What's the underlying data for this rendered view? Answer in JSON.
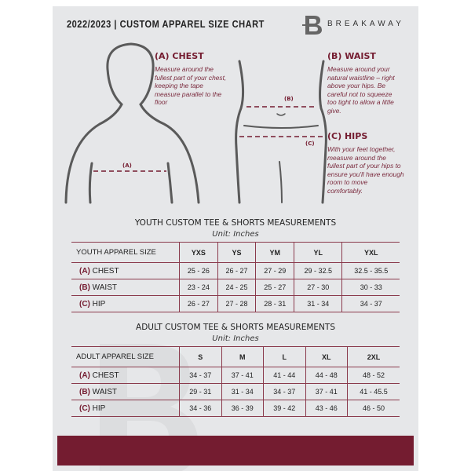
{
  "header": {
    "title": "2022/2023  |  CUSTOM APPAREL SIZE CHART",
    "brand": "BREAKAWAY",
    "logo_letter": "B"
  },
  "guides": {
    "chest": {
      "title": "(A) CHEST",
      "text": "Measure around the fullest part of your chest, keeping the tape measure parallel to the floor",
      "marker": "(A)"
    },
    "waist": {
      "title": "(B) WAIST",
      "text": "Measure around your natural waistline – right above your hips. Be careful not to squeeze too tight to allow a little give.",
      "marker": "(B)"
    },
    "hips": {
      "title": "(C) HIPS",
      "text": "With your feet together, measure around the fullest part of your hips to ensure you'll have enough room to move comfortably.",
      "marker": "(C)"
    }
  },
  "youth": {
    "title": "YOUTH CUSTOM TEE & SHORTS MEASUREMENTS",
    "unit": "Unit: Inches",
    "header": [
      "YOUTH APPAREL SIZE",
      "YXS",
      "YS",
      "YM",
      "YL",
      "YXL"
    ],
    "rows": [
      {
        "code": "(A)",
        "label": "CHEST",
        "values": [
          "25 - 26",
          "26 - 27",
          "27 - 29",
          "29 - 32.5",
          "32.5 - 35.5"
        ]
      },
      {
        "code": "(B)",
        "label": "WAIST",
        "values": [
          "23 - 24",
          "24 - 25",
          "25 - 27",
          "27 - 30",
          "30 - 33"
        ]
      },
      {
        "code": "(C)",
        "label": "HIP",
        "values": [
          "26 - 27",
          "27 - 28",
          "28 - 31",
          "31 - 34",
          "34 - 37"
        ]
      }
    ]
  },
  "adult": {
    "title": "ADULT CUSTOM TEE & SHORTS MEASUREMENTS",
    "unit": "Unit: Inches",
    "header": [
      "ADULT APPAREL SIZE",
      "S",
      "M",
      "L",
      "XL",
      "2XL"
    ],
    "rows": [
      {
        "code": "(A)",
        "label": "CHEST",
        "values": [
          "34 - 37",
          "37 - 41",
          "41 - 44",
          "44 - 48",
          "48 - 52"
        ]
      },
      {
        "code": "(B)",
        "label": "WAIST",
        "values": [
          "29 - 31",
          "31 - 34",
          "34 - 37",
          "37 - 41",
          "41 - 45.5"
        ]
      },
      {
        "code": "(C)",
        "label": "HIP",
        "values": [
          "34 - 36",
          "36 - 39",
          "39 - 42",
          "43 - 46",
          "46 - 50"
        ]
      }
    ]
  },
  "colors": {
    "accent": "#741c30",
    "panel": "#e6e7e9"
  }
}
